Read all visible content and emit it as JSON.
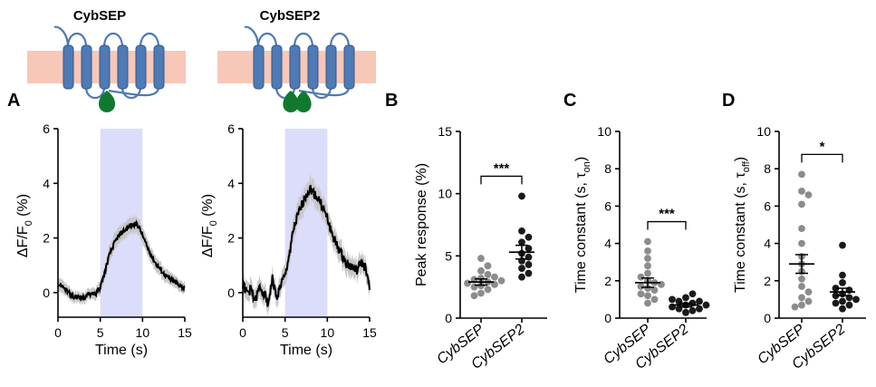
{
  "constructs": [
    {
      "title": "CybSEP",
      "domains": 1
    },
    {
      "title": "CybSEP2",
      "domains": 2
    }
  ],
  "panel_letters": [
    "A",
    "B",
    "C",
    "D"
  ],
  "colors": {
    "membrane": "#f7c7b8",
    "helix": "#4e7ab5",
    "helix_edge": "#36578a",
    "fluor": "#0f7a2e",
    "stim": "#dcdcfb",
    "trace": "#000000",
    "sem": "#c7c7c7",
    "grey_dots": "#8c8c8c",
    "black_dots": "#1a1a1a"
  },
  "chart_data": [
    {
      "type": "line",
      "id": "A-left",
      "construct": "CybSEP",
      "xlabel": "Time (s)",
      "ylabel_main": "ΔF/F",
      "ylabel_sub": "0",
      "ylabel_suffix": " (%)",
      "xlim": [
        0,
        15
      ],
      "ylim": [
        -0.9,
        6
      ],
      "xticks": [
        "0",
        "5",
        "10",
        "15"
      ],
      "yticks": [
        "0",
        "2",
        "4",
        "6"
      ],
      "stimulus": [
        5,
        10
      ],
      "x": [
        0,
        0.5,
        1,
        1.5,
        2,
        2.5,
        3,
        3.5,
        4,
        4.5,
        5,
        5.5,
        6,
        6.5,
        7,
        7.5,
        8,
        8.5,
        9,
        9.5,
        10,
        10.5,
        11,
        11.5,
        12,
        12.5,
        13,
        13.5,
        14,
        14.5,
        15
      ],
      "y": [
        0.3,
        0.25,
        0.1,
        -0.1,
        -0.2,
        -0.15,
        -0.2,
        -0.1,
        0.0,
        -0.05,
        0.2,
        0.7,
        1.3,
        1.7,
        2.0,
        2.2,
        2.3,
        2.45,
        2.5,
        2.45,
        2.1,
        1.7,
        1.4,
        1.1,
        0.9,
        0.7,
        0.55,
        0.45,
        0.35,
        0.25,
        0.15
      ],
      "sem": [
        0.25,
        0.25,
        0.22,
        0.22,
        0.2,
        0.2,
        0.2,
        0.2,
        0.2,
        0.22,
        0.25,
        0.28,
        0.3,
        0.3,
        0.3,
        0.3,
        0.3,
        0.3,
        0.3,
        0.3,
        0.3,
        0.3,
        0.28,
        0.28,
        0.26,
        0.25,
        0.24,
        0.23,
        0.22,
        0.21,
        0.2
      ]
    },
    {
      "type": "line",
      "id": "A-right",
      "construct": "CybSEP2",
      "xlabel": "Time (s)",
      "ylabel_main": "ΔF/F",
      "ylabel_sub": "0",
      "ylabel_suffix": " (%)",
      "xlim": [
        0,
        15
      ],
      "ylim": [
        -0.9,
        6
      ],
      "xticks": [
        "0",
        "5",
        "10",
        "15"
      ],
      "yticks": [
        "0",
        "2",
        "4",
        "6"
      ],
      "stimulus": [
        5,
        10
      ],
      "x": [
        0,
        0.5,
        1,
        1.5,
        2,
        2.5,
        3,
        3.5,
        4,
        4.5,
        5,
        5.5,
        6,
        6.5,
        7,
        7.5,
        8,
        8.5,
        9,
        9.5,
        10,
        10.5,
        11,
        11.5,
        12,
        12.5,
        13,
        13.5,
        14,
        14.5,
        15
      ],
      "y": [
        0.3,
        0.0,
        0.1,
        -0.3,
        0.2,
        0.0,
        -0.4,
        0.5,
        -0.2,
        0.3,
        0.6,
        1.4,
        2.3,
        2.8,
        3.2,
        3.6,
        3.8,
        3.6,
        3.4,
        3.1,
        2.7,
        2.2,
        1.8,
        1.5,
        1.2,
        1.0,
        0.9,
        0.8,
        1.1,
        0.9,
        0.1
      ],
      "sem": [
        0.35,
        0.35,
        0.35,
        0.35,
        0.35,
        0.35,
        0.35,
        0.35,
        0.35,
        0.35,
        0.38,
        0.4,
        0.42,
        0.42,
        0.42,
        0.42,
        0.42,
        0.42,
        0.42,
        0.42,
        0.42,
        0.4,
        0.4,
        0.4,
        0.38,
        0.38,
        0.36,
        0.36,
        0.36,
        0.35,
        0.35
      ]
    },
    {
      "type": "scatter",
      "id": "B",
      "ylabel": "Peak response (%)",
      "ylim": [
        0,
        15
      ],
      "yticks": [
        "0",
        "5",
        "10",
        "15"
      ],
      "categories": [
        "CybSEP",
        "CybSEP2"
      ],
      "significance": "***",
      "groups": [
        {
          "name": "CybSEP",
          "color": "grey",
          "mean": 2.9,
          "sem": 0.25,
          "values": [
            2.0,
            2.3,
            2.5,
            2.6,
            2.7,
            2.8,
            2.9,
            3.0,
            3.1,
            3.2,
            3.3,
            3.5,
            3.8,
            4.2,
            4.8,
            1.8
          ]
        },
        {
          "name": "CybSEP2",
          "color": "black",
          "mean": 5.3,
          "sem": 0.55,
          "values": [
            3.3,
            3.6,
            4.0,
            4.3,
            4.6,
            4.9,
            5.2,
            5.6,
            6.1,
            6.5,
            7.0,
            9.8
          ]
        }
      ]
    },
    {
      "type": "scatter",
      "id": "C",
      "ylabel_main": "Time constant (s, τ",
      "ylabel_sub": "on",
      "ylabel_suffix": ")",
      "ylim": [
        0,
        10
      ],
      "yticks": [
        "0",
        "2",
        "4",
        "6",
        "8",
        "10"
      ],
      "categories": [
        "CybSEP",
        "CybSEP2"
      ],
      "significance": "***",
      "groups": [
        {
          "name": "CybSEP",
          "color": "grey",
          "mean": 1.9,
          "sem": 0.25,
          "values": [
            0.8,
            1.0,
            1.2,
            1.3,
            1.5,
            1.6,
            1.7,
            1.8,
            1.9,
            2.0,
            2.2,
            2.4,
            2.8,
            3.2,
            3.6,
            4.1
          ]
        },
        {
          "name": "CybSEP2",
          "color": "black",
          "mean": 0.7,
          "sem": 0.1,
          "values": [
            0.3,
            0.4,
            0.5,
            0.5,
            0.6,
            0.7,
            0.7,
            0.8,
            0.9,
            0.9,
            1.0,
            1.1,
            1.3
          ]
        }
      ]
    },
    {
      "type": "scatter",
      "id": "D",
      "ylabel_main": "Time constant (s, τ",
      "ylabel_sub": "off",
      "ylabel_suffix": ")",
      "ylim": [
        0,
        10
      ],
      "yticks": [
        "0",
        "2",
        "4",
        "6",
        "8",
        "10"
      ],
      "categories": [
        "CybSEP",
        "CybSEP2"
      ],
      "significance": "*",
      "groups": [
        {
          "name": "CybSEP",
          "color": "grey",
          "mean": 2.9,
          "sem": 0.5,
          "values": [
            0.7,
            0.9,
            1.1,
            1.4,
            1.7,
            2.1,
            2.5,
            2.9,
            3.3,
            4.0,
            4.8,
            6.1,
            6.8,
            7.7,
            6.6,
            0.6
          ]
        },
        {
          "name": "CybSEP2",
          "color": "black",
          "mean": 1.4,
          "sem": 0.2,
          "values": [
            0.5,
            0.7,
            0.8,
            0.9,
            1.0,
            1.1,
            1.2,
            1.3,
            1.5,
            1.6,
            1.9,
            2.3,
            3.9
          ]
        }
      ]
    }
  ]
}
